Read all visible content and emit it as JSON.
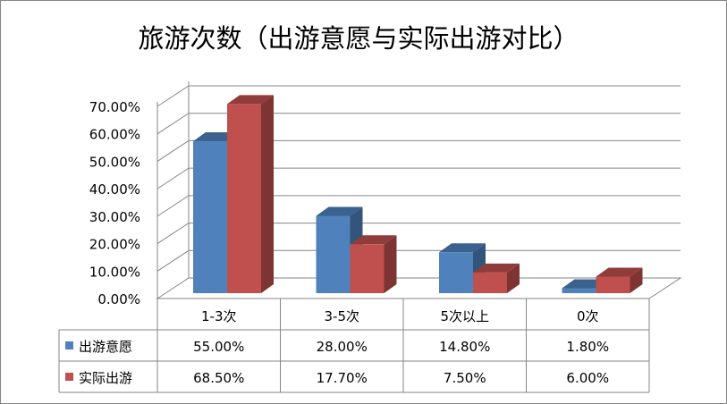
{
  "chart_data": {
    "type": "bar",
    "title": "旅游次数（出游意愿与实际出游对比）",
    "categories": [
      "1-3次",
      "3-5次",
      "5次以上",
      "0次"
    ],
    "series": [
      {
        "name": "出游意愿",
        "values": [
          55.0,
          28.0,
          14.8,
          1.8
        ],
        "labels": [
          "55.00%",
          "28.00%",
          "14.80%",
          "1.80%"
        ],
        "color": "#4F81BD"
      },
      {
        "name": "实际出游",
        "values": [
          68.5,
          17.7,
          7.5,
          6.0
        ],
        "labels": [
          "68.50%",
          "17.70%",
          "7.50%",
          "6.00%"
        ],
        "color": "#C0504D"
      }
    ],
    "yticks": [
      "0.00%",
      "10.00%",
      "20.00%",
      "30.00%",
      "40.00%",
      "50.00%",
      "60.00%",
      "70.00%"
    ],
    "ylim": [
      0,
      70
    ],
    "grid": true,
    "legend": "data-table",
    "style": "3d-clustered-column"
  }
}
